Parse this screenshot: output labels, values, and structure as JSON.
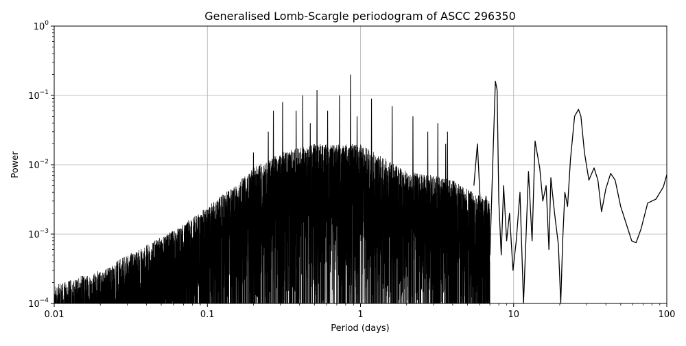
{
  "chart_data": {
    "type": "line",
    "title": "Generalised Lomb-Scargle periodogram of ASCC 296350",
    "xlabel": "Period (days)",
    "ylabel": "Power",
    "xscale": "log",
    "yscale": "log",
    "xlim": [
      0.01,
      100
    ],
    "ylim": [
      0.0001,
      1
    ],
    "grid": true,
    "x_ticks": [
      {
        "value": 0.01,
        "label": "0.01"
      },
      {
        "value": 0.1,
        "label": "0.1"
      },
      {
        "value": 1,
        "label": "1"
      },
      {
        "value": 10,
        "label": "10"
      },
      {
        "value": 100,
        "label": "100"
      }
    ],
    "y_ticks": [
      {
        "value": 0.0001,
        "base": "10",
        "exp": "−4"
      },
      {
        "value": 0.001,
        "base": "10",
        "exp": "−3"
      },
      {
        "value": 0.01,
        "base": "10",
        "exp": "−2"
      },
      {
        "value": 0.1,
        "base": "10",
        "exp": "−1"
      },
      {
        "value": 1,
        "base": "10",
        "exp": "0"
      }
    ],
    "line_color": "#000000",
    "envelope": {
      "period": [
        0.01,
        0.015,
        0.02,
        0.03,
        0.05,
        0.07,
        0.1,
        0.15,
        0.2,
        0.3,
        0.5,
        0.7,
        1.0,
        1.5,
        2.0,
        3.0,
        4.0,
        5.5,
        7.0
      ],
      "max_power": [
        0.00018,
        0.00025,
        0.0003,
        0.0005,
        0.0009,
        0.0014,
        0.0025,
        0.005,
        0.009,
        0.015,
        0.02,
        0.02,
        0.02,
        0.012,
        0.008,
        0.007,
        0.006,
        0.004,
        0.003
      ]
    },
    "peaks": [
      {
        "period": 0.2,
        "power": 0.015
      },
      {
        "period": 0.25,
        "power": 0.03
      },
      {
        "period": 0.27,
        "power": 0.06
      },
      {
        "period": 0.31,
        "power": 0.08
      },
      {
        "period": 0.38,
        "power": 0.06
      },
      {
        "period": 0.42,
        "power": 0.1
      },
      {
        "period": 0.47,
        "power": 0.04
      },
      {
        "period": 0.52,
        "power": 0.12
      },
      {
        "period": 0.61,
        "power": 0.06
      },
      {
        "period": 0.73,
        "power": 0.1
      },
      {
        "period": 0.86,
        "power": 0.2
      },
      {
        "period": 0.95,
        "power": 0.05
      },
      {
        "period": 1.18,
        "power": 0.09
      },
      {
        "period": 1.61,
        "power": 0.07
      },
      {
        "period": 2.2,
        "power": 0.05
      },
      {
        "period": 2.75,
        "power": 0.03
      },
      {
        "period": 3.2,
        "power": 0.04
      },
      {
        "period": 3.6,
        "power": 0.02
      },
      {
        "period": 3.7,
        "power": 0.03
      }
    ],
    "smooth_series": {
      "period": [
        5.5,
        5.8,
        6.2,
        6.6,
        7.0,
        7.3,
        7.6,
        7.8,
        8.0,
        8.3,
        8.6,
        9.0,
        9.4,
        9.9,
        10.4,
        11.0,
        11.6,
        12.5,
        13.2,
        13.8,
        14.8,
        15.5,
        16.3,
        17.0,
        17.5,
        18.5,
        19.6,
        20.3,
        20.9,
        21.6,
        22.5,
        23.5,
        25.0,
        26.5,
        27.5,
        29.0,
        31.0,
        33.5,
        35.5,
        37.5,
        40.0,
        43.0,
        46.0,
        50.0,
        55.0,
        59.0,
        63.0,
        68.0,
        75.0,
        85.0,
        95.0,
        100.0
      ],
      "power": [
        0.005,
        0.02,
        0.001,
        0.0035,
        0.0005,
        0.01,
        0.16,
        0.12,
        0.003,
        0.0005,
        0.005,
        0.0008,
        0.002,
        0.0003,
        0.0008,
        0.004,
        0.0001,
        0.008,
        0.0008,
        0.022,
        0.009,
        0.003,
        0.005,
        0.0006,
        0.0065,
        0.002,
        0.0007,
        0.0001,
        0.0008,
        0.004,
        0.0025,
        0.012,
        0.05,
        0.063,
        0.05,
        0.015,
        0.006,
        0.009,
        0.006,
        0.0021,
        0.0045,
        0.0075,
        0.006,
        0.0025,
        0.0013,
        0.0008,
        0.00075,
        0.0012,
        0.0028,
        0.0032,
        0.0048,
        0.0072
      ]
    }
  }
}
